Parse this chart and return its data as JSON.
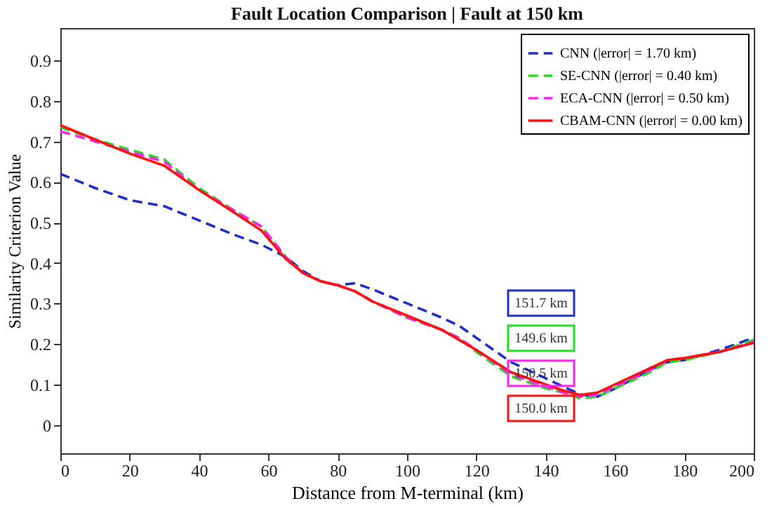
{
  "chart_data": {
    "type": "line",
    "title": "Fault Location Comparison  |  Fault at 150 km",
    "xlabel": "Distance from M-terminal (km)",
    "ylabel": "Similarity Criterion Value",
    "x": [
      0,
      10,
      20,
      30,
      40,
      50,
      58,
      65,
      70,
      75,
      80,
      85,
      90,
      100,
      110,
      115,
      120,
      130,
      140,
      145,
      150,
      155,
      160,
      170,
      175,
      180,
      190,
      200
    ],
    "series": [
      {
        "name": "CNN (|error| = 1.70 km)",
        "color": "#1f2fcc",
        "line_style": "dashed",
        "values": [
          0.62,
          0.585,
          0.555,
          0.54,
          0.505,
          0.47,
          0.445,
          0.415,
          0.38,
          0.355,
          0.345,
          0.35,
          0.335,
          0.3,
          0.265,
          0.245,
          0.215,
          0.155,
          0.115,
          0.095,
          0.075,
          0.07,
          0.09,
          0.135,
          0.155,
          0.16,
          0.185,
          0.215
        ]
      },
      {
        "name": "SE-CNN (|error| = 0.40 km)",
        "color": "#22dd22",
        "line_style": "dashed",
        "values": [
          0.735,
          0.705,
          0.68,
          0.655,
          0.585,
          0.53,
          0.49,
          0.415,
          0.375,
          0.355,
          0.345,
          0.33,
          0.305,
          0.265,
          0.235,
          0.215,
          0.18,
          0.12,
          0.09,
          0.08,
          0.065,
          0.07,
          0.09,
          0.13,
          0.155,
          0.16,
          0.18,
          0.21
        ]
      },
      {
        "name": "ECA-CNN (|error| = 0.50 km)",
        "color": "#ff22ee",
        "line_style": "dashed",
        "values": [
          0.725,
          0.7,
          0.675,
          0.65,
          0.58,
          0.53,
          0.49,
          0.415,
          0.375,
          0.355,
          0.345,
          0.33,
          0.305,
          0.265,
          0.235,
          0.215,
          0.185,
          0.125,
          0.095,
          0.08,
          0.07,
          0.075,
          0.095,
          0.135,
          0.16,
          0.165,
          0.18,
          0.205
        ]
      },
      {
        "name": "CBAM-CNN (|error| = 0.00 km)",
        "color": "#ff1010",
        "line_style": "solid",
        "values": [
          0.74,
          0.705,
          0.67,
          0.64,
          0.58,
          0.525,
          0.48,
          0.41,
          0.375,
          0.355,
          0.345,
          0.33,
          0.305,
          0.27,
          0.235,
          0.21,
          0.185,
          0.13,
          0.1,
          0.085,
          0.074,
          0.08,
          0.1,
          0.14,
          0.16,
          0.165,
          0.18,
          0.203
        ]
      }
    ],
    "annotations": [
      "151.7 km",
      "149.6 km",
      "150.5 km",
      "150.0 km"
    ],
    "xlim": [
      0,
      200
    ],
    "xticks": [
      0,
      20,
      40,
      60,
      80,
      100,
      120,
      140,
      160,
      180,
      200
    ],
    "ylim": [
      -0.07,
      0.98
    ],
    "yticks": [
      0,
      0.1,
      0.2,
      0.3,
      0.4,
      0.5,
      0.6,
      0.7,
      0.8,
      0.9
    ],
    "grid": false,
    "legend": "top right",
    "marker": "none"
  }
}
